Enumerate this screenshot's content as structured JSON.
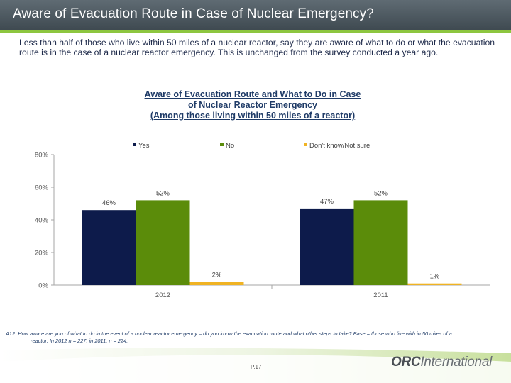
{
  "slide": {
    "title": "Aware of Evacuation Route in Case of Nuclear Emergency?",
    "subtitle": "Less than half of those who live within 50 miles of a nuclear reactor, say they are aware of what to do or what the evacuation route is in the case of a nuclear reactor emergency.  This is unchanged from the survey conducted a year ago.",
    "footnote_line1": "A12. How aware are you of what to do in the event of a nuclear reactor emergency – do you know the evacuation route and what other steps to take?  Base = those who live with in 50 miles of a",
    "footnote_line2": "reactor.  In 2012 n = 227, in 2011, n = 224.",
    "page_number": "P.17",
    "logo_bold": "ORC",
    "logo_rest": "International"
  },
  "chart_data": {
    "type": "bar",
    "title_lines": [
      "Aware of Evacuation Route and What to Do in Case",
      "of Nuclear Reactor Emergency",
      "(Among those living within 50 miles of a reactor)"
    ],
    "categories": [
      "2012",
      "2011"
    ],
    "series": [
      {
        "name": "Yes",
        "values": [
          46,
          47
        ],
        "labels": [
          "46%",
          "47%"
        ],
        "color": "#0d1b4b"
      },
      {
        "name": "No",
        "values": [
          52,
          52
        ],
        "labels": [
          "52%",
          "52%"
        ],
        "color": "#5b8c0a"
      },
      {
        "name": "Don't know/Not sure",
        "values": [
          2,
          1
        ],
        "labels": [
          "2%",
          "1%"
        ],
        "color": "#f0b323"
      }
    ],
    "y_ticks": [
      "0%",
      "20%",
      "40%",
      "60%",
      "80%"
    ],
    "ylim": [
      0,
      80
    ],
    "legend_position": "top"
  }
}
